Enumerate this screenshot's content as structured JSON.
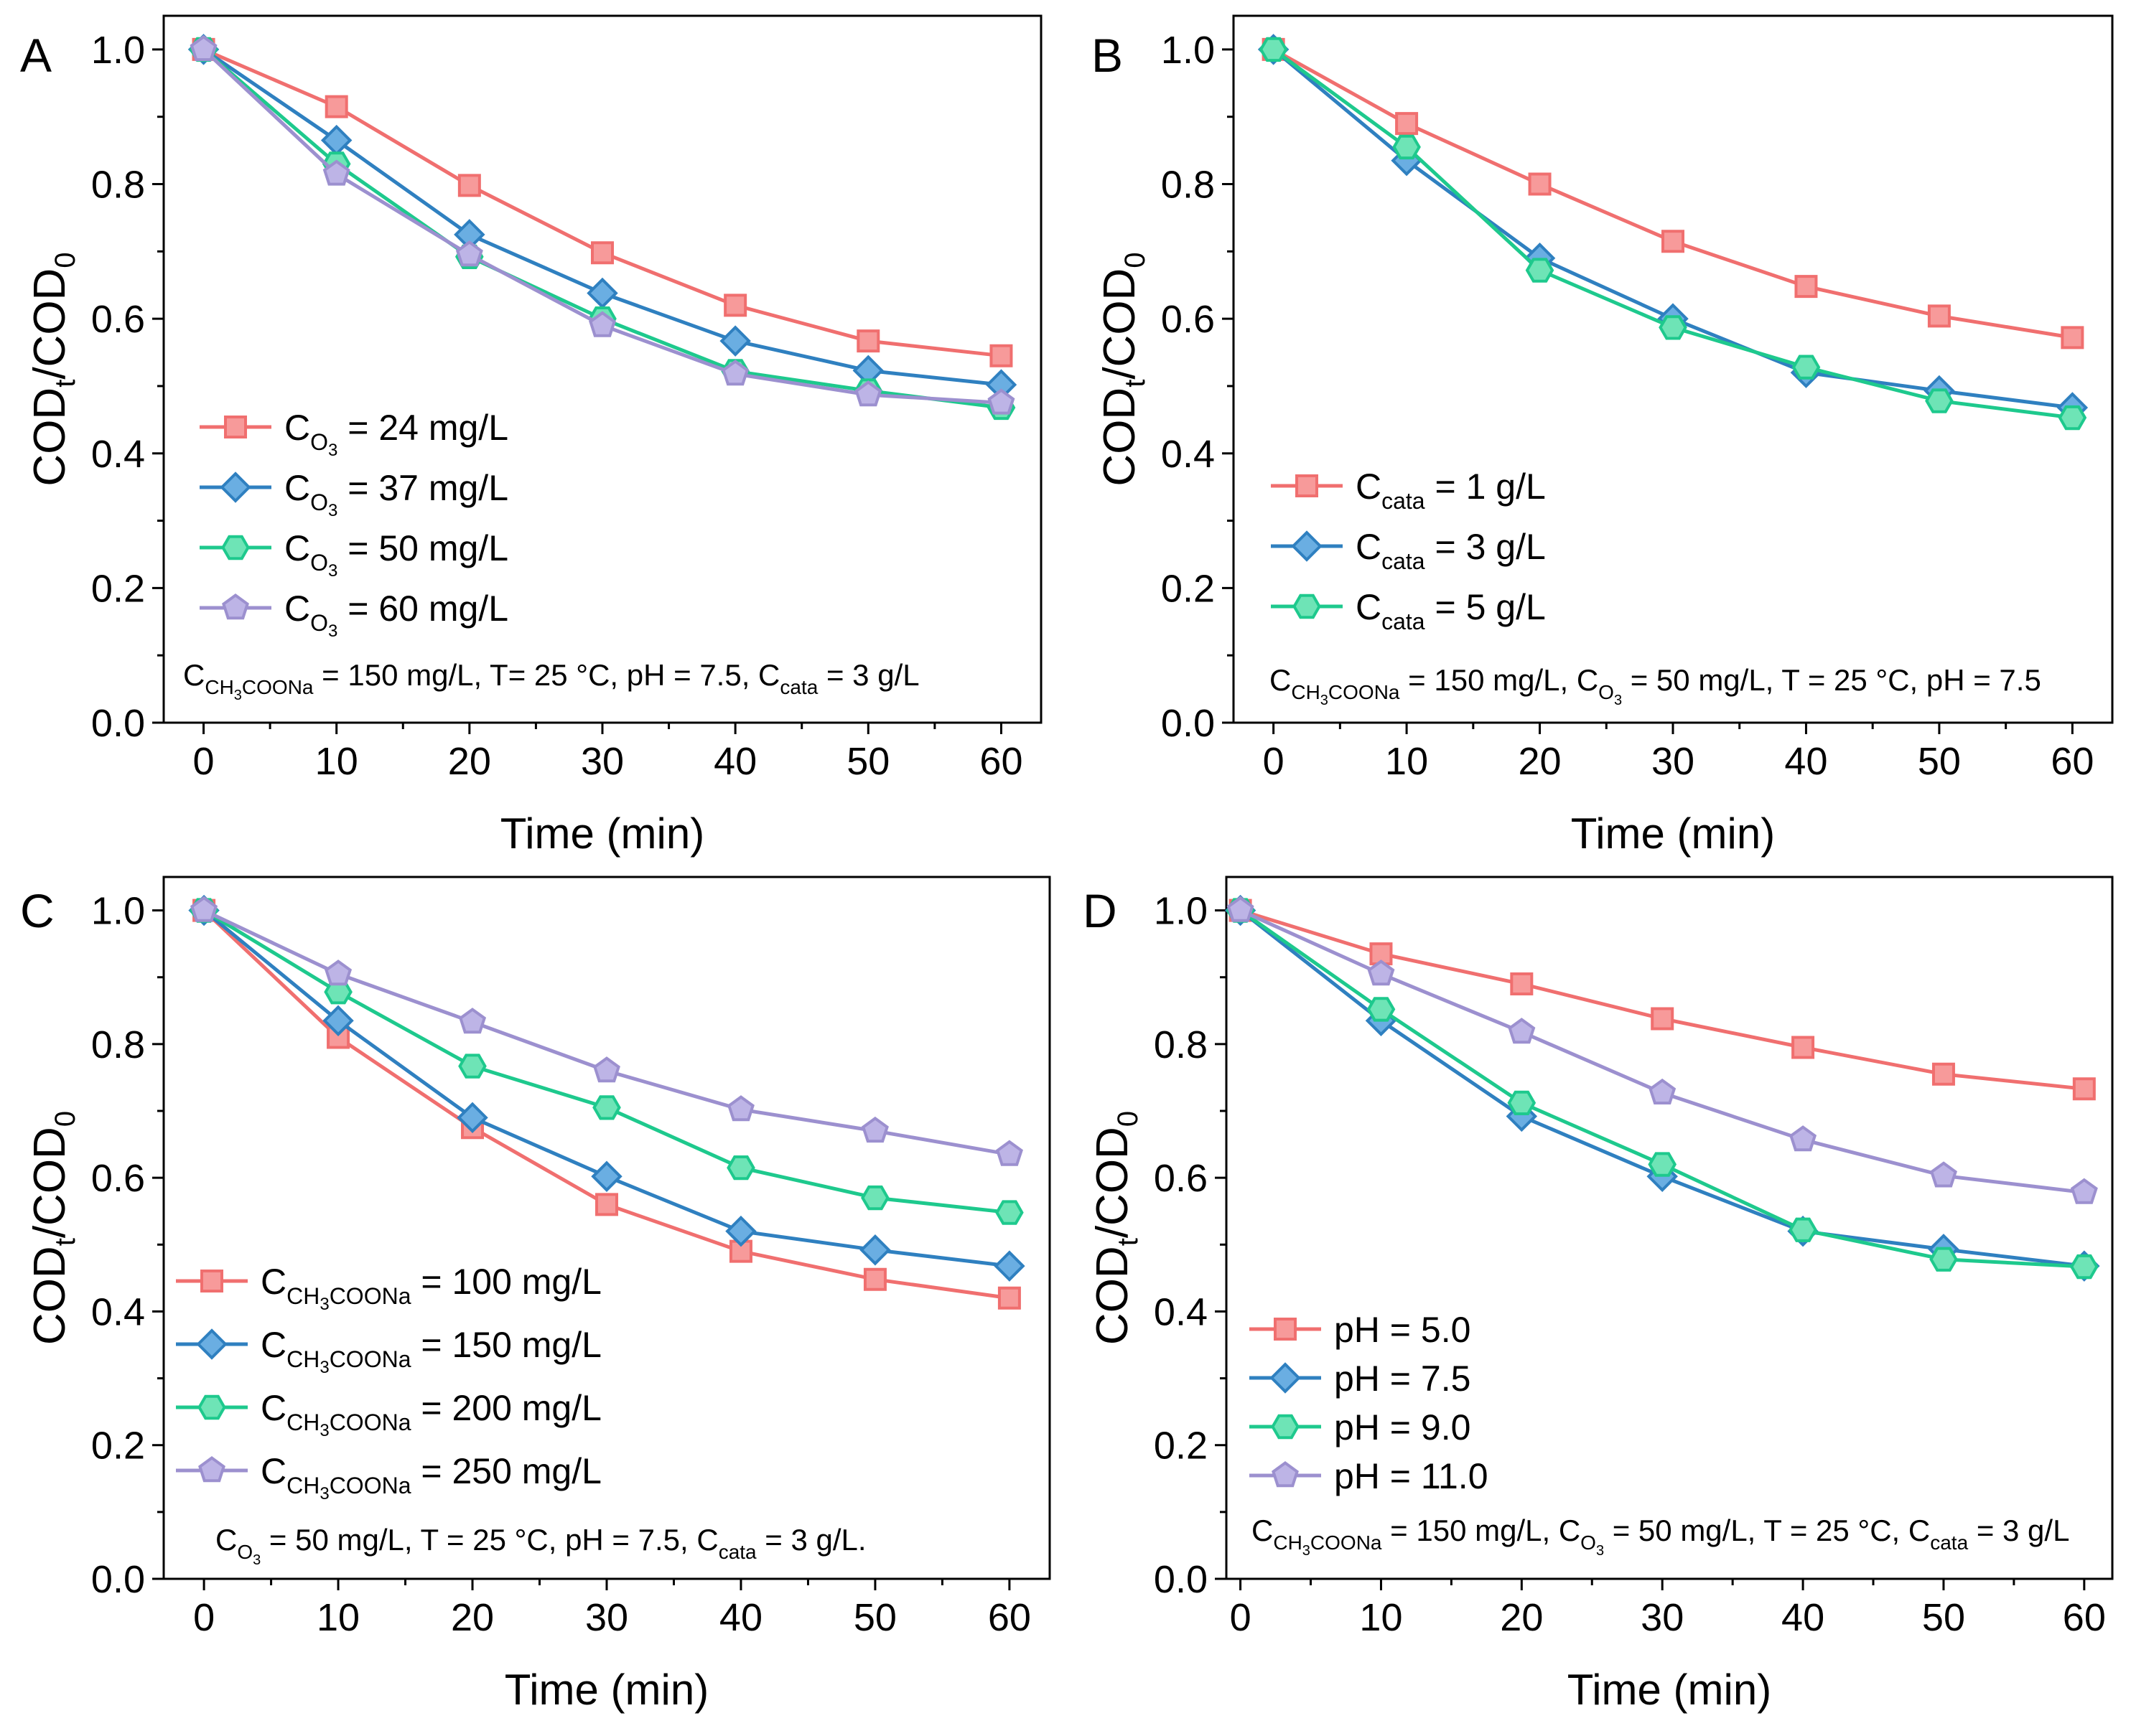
{
  "figure": {
    "colors": {
      "red": "#f06f6f",
      "red_fill": "#f79a9a",
      "blue": "#2f80c0",
      "blue_fill": "#6aaee2",
      "green": "#1ec98d",
      "green_fill": "#6ee4b6",
      "purple": "#9c90cf",
      "purple_fill": "#bdb4e6",
      "axis": "#000000"
    },
    "marker_names": {
      "square": "square-marker",
      "diamond": "diamond-marker",
      "hexagon": "hexagon-marker",
      "pentagon": "pentagon-marker"
    }
  },
  "chart_data": [
    {
      "panel_label": "A",
      "type": "line",
      "x": [
        0,
        10,
        20,
        30,
        40,
        50,
        60
      ],
      "xlim": [
        -3,
        63
      ],
      "ylim": [
        0,
        1.05
      ],
      "xticks": [
        "0",
        "10",
        "20",
        "30",
        "40",
        "50",
        "60"
      ],
      "yticks": [
        "0.0",
        "0.2",
        "0.4",
        "0.6",
        "0.8",
        "1.0"
      ],
      "xlabel": "Time (min)",
      "ylabel": {
        "main": "COD",
        "sub1": "t",
        "mid": "/COD",
        "sub2": "0"
      },
      "legend_position": "middle-left",
      "series": [
        {
          "name": "24 mg/L",
          "label_prefix": "C",
          "label_sub": "O",
          "label_subsub": "3",
          "label_rest": " = 24 mg/L",
          "color": "red",
          "marker": "square",
          "values": [
            1.0,
            0.915,
            0.798,
            0.698,
            0.62,
            0.567,
            0.545
          ]
        },
        {
          "name": "37 mg/L",
          "label_prefix": "C",
          "label_sub": "O",
          "label_subsub": "3",
          "label_rest": " = 37 mg/L",
          "color": "blue",
          "marker": "diamond",
          "values": [
            1.0,
            0.865,
            0.725,
            0.638,
            0.567,
            0.523,
            0.502
          ]
        },
        {
          "name": "50 mg/L",
          "label_prefix": "C",
          "label_sub": "O",
          "label_subsub": "3",
          "label_rest": " = 50 mg/L",
          "color": "green",
          "marker": "hexagon",
          "values": [
            1.0,
            0.83,
            0.692,
            0.6,
            0.522,
            0.493,
            0.468
          ]
        },
        {
          "name": "60 mg/L",
          "label_prefix": "C",
          "label_sub": "O",
          "label_subsub": "3",
          "label_rest": " = 60 mg/L",
          "color": "purple",
          "marker": "pentagon",
          "values": [
            1.0,
            0.815,
            0.695,
            0.59,
            0.518,
            0.487,
            0.475
          ]
        }
      ],
      "condition": [
        {
          "t": "C"
        },
        {
          "t": "CH",
          "sub": true
        },
        {
          "t": "3",
          "subsub": true
        },
        {
          "t": "COONa",
          "sub": true
        },
        {
          "t": " = 150 mg/L, T= 25 °C, pH = 7.5, C"
        },
        {
          "t": "cata",
          "sub": true
        },
        {
          "t": " = 3 g/L"
        }
      ]
    },
    {
      "panel_label": "B",
      "type": "line",
      "x": [
        0,
        10,
        20,
        30,
        40,
        50,
        60
      ],
      "xlim": [
        -3,
        63
      ],
      "ylim": [
        0,
        1.05
      ],
      "xticks": [
        "0",
        "10",
        "20",
        "30",
        "40",
        "50",
        "60"
      ],
      "yticks": [
        "0.0",
        "0.2",
        "0.4",
        "0.6",
        "0.8",
        "1.0"
      ],
      "xlabel": "Time (min)",
      "ylabel": {
        "main": "COD",
        "sub1": "t",
        "mid": "/COD",
        "sub2": "0"
      },
      "legend_position": "middle-left",
      "series": [
        {
          "name": "1 g/L",
          "label_prefix": "C",
          "label_sub": "cata",
          "label_subsub": "",
          "label_rest": " = 1 g/L",
          "color": "red",
          "marker": "square",
          "values": [
            1.0,
            0.89,
            0.8,
            0.715,
            0.648,
            0.604,
            0.572
          ]
        },
        {
          "name": "3 g/L",
          "label_prefix": "C",
          "label_sub": "cata",
          "label_subsub": "",
          "label_rest": " = 3 g/L",
          "color": "blue",
          "marker": "diamond",
          "values": [
            1.0,
            0.835,
            0.69,
            0.6,
            0.52,
            0.493,
            0.468
          ]
        },
        {
          "name": "5 g/L",
          "label_prefix": "C",
          "label_sub": "cata",
          "label_subsub": "",
          "label_rest": " = 5 g/L",
          "color": "green",
          "marker": "hexagon",
          "values": [
            1.0,
            0.855,
            0.672,
            0.587,
            0.528,
            0.478,
            0.453
          ]
        }
      ],
      "condition": [
        {
          "t": "C"
        },
        {
          "t": "CH",
          "sub": true
        },
        {
          "t": "3",
          "subsub": true
        },
        {
          "t": "COONa",
          "sub": true
        },
        {
          "t": " = 150 mg/L, C"
        },
        {
          "t": "O",
          "sub": true
        },
        {
          "t": "3",
          "subsub": true
        },
        {
          "t": " = 50 mg/L, T = 25 °C, pH = 7.5"
        }
      ]
    },
    {
      "panel_label": "C",
      "type": "line",
      "x": [
        0,
        10,
        20,
        30,
        40,
        50,
        60
      ],
      "xlim": [
        -3,
        63
      ],
      "ylim": [
        0,
        1.05
      ],
      "xticks": [
        "0",
        "10",
        "20",
        "30",
        "40",
        "50",
        "60"
      ],
      "yticks": [
        "0.0",
        "0.2",
        "0.4",
        "0.6",
        "0.8",
        "1.0"
      ],
      "xlabel": "Time (min)",
      "ylabel": {
        "main": "COD",
        "sub1": "t",
        "mid": "/COD",
        "sub2": "0"
      },
      "legend_position": "lower-left",
      "series": [
        {
          "name": "100 mg/L",
          "label_prefix": "C",
          "label_sub": "CH",
          "label_subsub": "3",
          "label_sub2": "COONa",
          "label_rest": " = 100 mg/L",
          "color": "red",
          "marker": "square",
          "values": [
            1.0,
            0.81,
            0.675,
            0.56,
            0.49,
            0.448,
            0.42
          ]
        },
        {
          "name": "150 mg/L",
          "label_prefix": "C",
          "label_sub": "CH",
          "label_subsub": "3",
          "label_sub2": "COONa",
          "label_rest": " = 150 mg/L",
          "color": "blue",
          "marker": "diamond",
          "values": [
            1.0,
            0.835,
            0.69,
            0.602,
            0.52,
            0.492,
            0.468
          ]
        },
        {
          "name": "200 mg/L",
          "label_prefix": "C",
          "label_sub": "CH",
          "label_subsub": "3",
          "label_sub2": "COONa",
          "label_rest": " = 200 mg/L",
          "color": "green",
          "marker": "hexagon",
          "values": [
            1.0,
            0.878,
            0.767,
            0.705,
            0.615,
            0.57,
            0.548
          ]
        },
        {
          "name": "250 mg/L",
          "label_prefix": "C",
          "label_sub": "CH",
          "label_subsub": "3",
          "label_sub2": "COONa",
          "label_rest": " = 250 mg/L",
          "color": "purple",
          "marker": "pentagon",
          "values": [
            1.0,
            0.905,
            0.833,
            0.76,
            0.702,
            0.67,
            0.635
          ]
        }
      ],
      "condition": [
        {
          "t": "C"
        },
        {
          "t": "O",
          "sub": true
        },
        {
          "t": "3",
          "subsub": true
        },
        {
          "t": " = 50 mg/L, T = 25 °C, pH = 7.5, C"
        },
        {
          "t": "cata",
          "sub": true
        },
        {
          "t": " = 3 g/L."
        }
      ]
    },
    {
      "panel_label": "D",
      "type": "line",
      "x": [
        0,
        10,
        20,
        30,
        40,
        50,
        60
      ],
      "xlim": [
        -1,
        62
      ],
      "ylim": [
        0,
        1.05
      ],
      "xticks": [
        "0",
        "10",
        "20",
        "30",
        "40",
        "50",
        "60"
      ],
      "yticks": [
        "0.0",
        "0.2",
        "0.4",
        "0.6",
        "0.8",
        "1.0"
      ],
      "xlabel": "Time (min)",
      "ylabel": {
        "main": "COD",
        "sub1": "t",
        "mid": "/COD",
        "sub2": "0"
      },
      "legend_position": "lower-left",
      "series": [
        {
          "name": "pH = 5.0",
          "label_prefix": "",
          "label_sub": "",
          "label_subsub": "",
          "label_rest": "pH = 5.0",
          "color": "red",
          "marker": "square",
          "values": [
            1.0,
            0.935,
            0.89,
            0.838,
            0.795,
            0.755,
            0.733
          ]
        },
        {
          "name": "pH = 7.5",
          "label_prefix": "",
          "label_sub": "",
          "label_subsub": "",
          "label_rest": "pH = 7.5",
          "color": "blue",
          "marker": "diamond",
          "values": [
            1.0,
            0.835,
            0.692,
            0.602,
            0.52,
            0.493,
            0.468
          ]
        },
        {
          "name": "pH = 9.0",
          "label_prefix": "",
          "label_sub": "",
          "label_subsub": "",
          "label_rest": "pH = 9.0",
          "color": "green",
          "marker": "hexagon",
          "values": [
            1.0,
            0.852,
            0.712,
            0.62,
            0.522,
            0.478,
            0.467
          ]
        },
        {
          "name": "pH = 11.0",
          "label_prefix": "",
          "label_sub": "",
          "label_subsub": "",
          "label_rest": "pH = 11.0",
          "color": "purple",
          "marker": "pentagon",
          "values": [
            1.0,
            0.905,
            0.818,
            0.727,
            0.657,
            0.603,
            0.578
          ]
        }
      ],
      "condition": [
        {
          "t": "C"
        },
        {
          "t": "CH",
          "sub": true
        },
        {
          "t": "3",
          "subsub": true
        },
        {
          "t": "COONa",
          "sub": true
        },
        {
          "t": " = 150 mg/L, C"
        },
        {
          "t": "O",
          "sub": true
        },
        {
          "t": "3",
          "subsub": true
        },
        {
          "t": " = 50 mg/L, T = 25 °C, C"
        },
        {
          "t": "cata",
          "sub": true
        },
        {
          "t": " = 3 g/L"
        }
      ]
    }
  ]
}
